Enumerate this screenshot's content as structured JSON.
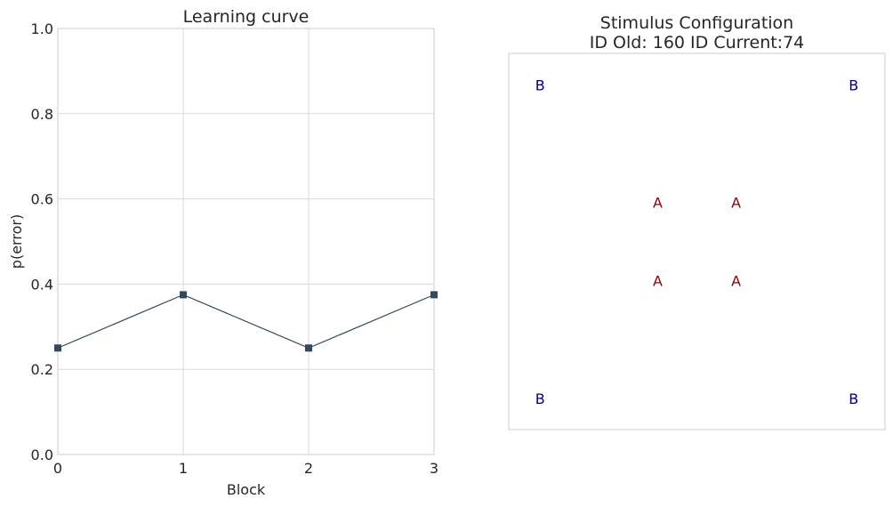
{
  "chart_data": [
    {
      "type": "line",
      "title": "Learning curve",
      "xlabel": "Block",
      "ylabel": "p(error)",
      "xlim": [
        0,
        3
      ],
      "ylim": [
        0,
        1
      ],
      "x_ticks": [
        "0",
        "1",
        "2",
        "3"
      ],
      "y_ticks": [
        "0.0",
        "0.2",
        "0.4",
        "0.6",
        "0.8",
        "1.0"
      ],
      "grid": true,
      "marker": "square",
      "series": [
        {
          "x": [
            0,
            1,
            2,
            3
          ],
          "values": [
            0.25,
            0.375,
            0.25,
            0.375
          ],
          "color": "#34495e"
        }
      ]
    },
    {
      "type": "scatter",
      "title_line1": "Stimulus Configuration",
      "title_line2": "ID Old: 160 ID Current:74",
      "xlim": [
        -1.2,
        1.2
      ],
      "ylim": [
        -1.2,
        1.2
      ],
      "grid": false,
      "points": [
        {
          "label": "A",
          "x": -0.25,
          "y": 0.25,
          "color": "#8b0000"
        },
        {
          "label": "A",
          "x": 0.25,
          "y": 0.25,
          "color": "#8b0000"
        },
        {
          "label": "A",
          "x": -0.25,
          "y": -0.25,
          "color": "#8b0000"
        },
        {
          "label": "A",
          "x": 0.25,
          "y": -0.25,
          "color": "#8b0000"
        },
        {
          "label": "B",
          "x": -1,
          "y": 1,
          "color": "#000080"
        },
        {
          "label": "B",
          "x": 1,
          "y": 1,
          "color": "#000080"
        },
        {
          "label": "B",
          "x": -1,
          "y": -1,
          "color": "#000080"
        },
        {
          "label": "B",
          "x": 1,
          "y": -1,
          "color": "#000080"
        }
      ]
    }
  ]
}
